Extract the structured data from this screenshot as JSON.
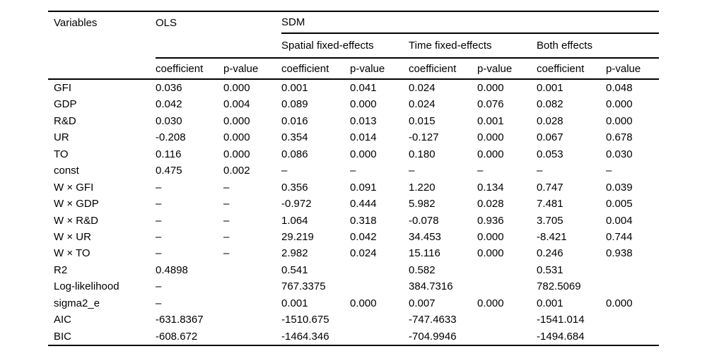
{
  "page": {
    "background_color": "#ffffff",
    "text_color": "#000000",
    "rule_color": "#000000"
  },
  "table": {
    "header": {
      "variables": "Variables",
      "ols": "OLS",
      "sdm": "SDM",
      "spanners": [
        "Spatial fixed-effects",
        "Time fixed-effects",
        "Both effects"
      ],
      "measure_labels": [
        "coefficient",
        "p-value",
        "coefficient",
        "p-value",
        "coefficient",
        "p-value",
        "coefficient",
        "p-value"
      ]
    },
    "rows": [
      {
        "label": "GFI",
        "values": [
          "0.036",
          "0.000",
          "0.001",
          "0.041",
          "0.024",
          "0.000",
          "0.001",
          "0.048"
        ]
      },
      {
        "label": "GDP",
        "values": [
          "0.042",
          "0.004",
          "0.089",
          "0.000",
          "0.024",
          "0.076",
          "0.082",
          "0.000"
        ]
      },
      {
        "label": "R&D",
        "values": [
          "0.030",
          "0.000",
          "0.016",
          "0.013",
          "0.015",
          "0.001",
          "0.028",
          "0.000"
        ]
      },
      {
        "label": "UR",
        "values": [
          "-0.208",
          "0.000",
          "0.354",
          "0.014",
          "-0.127",
          "0.000",
          "0.067",
          "0.678"
        ]
      },
      {
        "label": "TO",
        "values": [
          "0.116",
          "0.000",
          "0.086",
          "0.000",
          "0.180",
          "0.000",
          "0.053",
          "0.030"
        ]
      },
      {
        "label": "const",
        "values": [
          "0.475",
          "0.002",
          "–",
          "–",
          "–",
          "–",
          "–",
          "–"
        ]
      },
      {
        "label": "W × GFI",
        "values": [
          "–",
          "–",
          "0.356",
          "0.091",
          "1.220",
          "0.134",
          "0.747",
          "0.039"
        ]
      },
      {
        "label": "W × GDP",
        "values": [
          "–",
          "–",
          "-0.972",
          "0.444",
          "5.982",
          "0.028",
          "7.481",
          "0.005"
        ]
      },
      {
        "label": "W × R&D",
        "values": [
          "–",
          "–",
          "1.064",
          "0.318",
          "-0.078",
          "0.936",
          "3.705",
          "0.004"
        ]
      },
      {
        "label": "W × UR",
        "values": [
          "–",
          "–",
          "29.219",
          "0.042",
          "34.453",
          "0.000",
          "-8.421",
          "0.744"
        ]
      },
      {
        "label": "W × TO",
        "values": [
          "–",
          "–",
          "2.982",
          "0.024",
          "15.116",
          "0.000",
          "0.246",
          "0.938"
        ]
      },
      {
        "label": "R2",
        "values": [
          "0.4898",
          "",
          "0.541",
          "",
          "0.582",
          "",
          "0.531",
          ""
        ]
      },
      {
        "label": "Log-likelihood",
        "values": [
          "–",
          "",
          "767.3375",
          "",
          "384.7316",
          "",
          "782.5069",
          ""
        ]
      },
      {
        "label": "sigma2_e",
        "values": [
          "–",
          "",
          "0.001",
          "0.000",
          "0.007",
          "0.000",
          "0.001",
          "0.000"
        ]
      },
      {
        "label": "AIC",
        "values": [
          "-631.8367",
          "",
          "-1510.675",
          "",
          "-747.4633",
          "",
          "-1541.014",
          ""
        ]
      },
      {
        "label": "BIC",
        "values": [
          "-608.672",
          "",
          "-1464.346",
          "",
          "-704.9946",
          "",
          "-1494.684",
          ""
        ]
      }
    ]
  }
}
